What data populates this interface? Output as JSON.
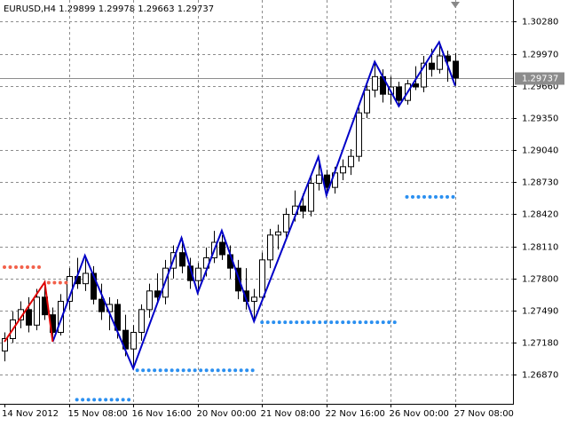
{
  "chart_data": {
    "type": "candlestick",
    "title": "EURUSD,H4  1.29899 1.29978 1.29663 1.29737",
    "categories": [
      "14 Nov 2012",
      null,
      null,
      null,
      null,
      null,
      null,
      null,
      "15 Nov 08:00",
      null,
      null,
      null,
      null,
      null,
      null,
      null,
      "16 Nov 16:00",
      null,
      null,
      null,
      null,
      null,
      null,
      null,
      "20 Nov 00:00",
      null,
      null,
      null,
      null,
      null,
      null,
      null,
      "21 Nov 08:00",
      null,
      null,
      null,
      null,
      null,
      null,
      null,
      "22 Nov 16:00",
      null,
      null,
      null,
      null,
      null,
      null,
      null,
      "26 Nov 00:00",
      null,
      null,
      null,
      null,
      null,
      null,
      null,
      "27 Nov 08:00"
    ],
    "open": [
      1.271,
      1.2722,
      1.274,
      1.275,
      1.2735,
      1.2762,
      1.2745,
      1.2728,
      1.2758,
      1.2782,
      1.2775,
      1.2785,
      1.276,
      1.2748,
      1.2755,
      1.273,
      1.2712,
      1.2728,
      1.275,
      1.2768,
      1.2762,
      1.279,
      1.2805,
      1.2792,
      1.2778,
      1.279,
      1.28,
      1.2815,
      1.2803,
      1.279,
      1.2768,
      1.2758,
      1.2762,
      1.2798,
      1.2822,
      1.2825,
      1.2842,
      1.285,
      1.2845,
      1.2872,
      1.288,
      1.2868,
      1.2882,
      1.2888,
      1.2898,
      1.294,
      1.2962,
      1.2975,
      1.2958,
      1.2965,
      1.2952,
      1.2968,
      1.2965,
      1.2988,
      1.2982,
      1.2995,
      1.29899
    ],
    "high": [
      1.2728,
      1.2748,
      1.2758,
      1.2762,
      1.277,
      1.2778,
      1.2752,
      1.2765,
      1.279,
      1.28,
      1.2802,
      1.2792,
      1.2775,
      1.2762,
      1.276,
      1.2745,
      1.2735,
      1.2755,
      1.2775,
      1.2785,
      1.2798,
      1.2812,
      1.2819,
      1.28,
      1.2795,
      1.281,
      1.2826,
      1.2822,
      1.2812,
      1.2798,
      1.279,
      1.277,
      1.2805,
      1.2828,
      1.2832,
      1.2848,
      1.2865,
      1.2862,
      1.288,
      1.2897,
      1.2885,
      1.2888,
      1.2895,
      1.2905,
      1.2945,
      1.297,
      1.2989,
      1.2982,
      1.2975,
      1.297,
      1.2972,
      1.2985,
      1.2995,
      1.3002,
      1.3008,
      1.3,
      1.29978
    ],
    "low": [
      1.27,
      1.2718,
      1.2732,
      1.2728,
      1.273,
      1.274,
      1.2719,
      1.2725,
      1.275,
      1.277,
      1.2768,
      1.2755,
      1.274,
      1.273,
      1.2722,
      1.2705,
      1.2693,
      1.272,
      1.2742,
      1.2758,
      1.2755,
      1.278,
      1.2785,
      1.277,
      1.2766,
      1.2782,
      1.2795,
      1.2798,
      1.278,
      1.276,
      1.275,
      1.2739,
      1.2758,
      1.279,
      1.2808,
      1.2818,
      1.2835,
      1.2838,
      1.284,
      1.2865,
      1.286,
      1.2862,
      1.2875,
      1.288,
      1.2893,
      1.2935,
      1.2955,
      1.295,
      1.2948,
      1.2946,
      1.2948,
      1.2962,
      1.296,
      1.2975,
      1.2978,
      1.297,
      1.29663
    ],
    "close": [
      1.2722,
      1.274,
      1.275,
      1.2735,
      1.2762,
      1.2745,
      1.2728,
      1.2758,
      1.2782,
      1.2775,
      1.2785,
      1.276,
      1.2748,
      1.2755,
      1.273,
      1.2712,
      1.2728,
      1.275,
      1.2768,
      1.2762,
      1.279,
      1.2805,
      1.2792,
      1.2778,
      1.279,
      1.28,
      1.2815,
      1.2803,
      1.279,
      1.2768,
      1.2758,
      1.2762,
      1.2798,
      1.2822,
      1.2825,
      1.2842,
      1.285,
      1.2845,
      1.2872,
      1.288,
      1.2868,
      1.2882,
      1.2888,
      1.2898,
      1.294,
      1.2962,
      1.2975,
      1.2958,
      1.2965,
      1.2952,
      1.2968,
      1.2965,
      1.2988,
      1.2982,
      1.2995,
      1.299,
      1.29737
    ],
    "zigzags": [
      {
        "color": "#0000c8",
        "x": [
          6,
          10,
          16,
          22,
          24,
          27,
          31,
          39,
          40,
          46,
          49,
          54,
          56
        ],
        "values": [
          1.27189,
          1.28022,
          1.26931,
          1.28193,
          1.27661,
          1.28262,
          1.27386,
          1.28975,
          1.28605,
          1.29894,
          1.29464,
          1.30083,
          1.29662
        ]
      },
      {
        "color": "#e00000",
        "x": [
          0,
          5,
          6
        ],
        "values": [
          1.27189,
          1.27764,
          1.27189
        ]
      }
    ],
    "levels": [
      {
        "color": "#f2604a",
        "value": 1.2791,
        "x": [
          0,
          5
        ]
      },
      {
        "color": "#f2604a",
        "value": 1.2776,
        "x": [
          5.5,
          8
        ]
      },
      {
        "color": "#2a8ff0",
        "value": 1.2663,
        "x": [
          9,
          16
        ]
      },
      {
        "color": "#2a8ff0",
        "value": 1.26914,
        "x": [
          16.5,
          31
        ]
      },
      {
        "color": "#2a8ff0",
        "value": 1.27378,
        "x": [
          32,
          49
        ]
      },
      {
        "color": "#2a8ff0",
        "value": 1.28588,
        "x": [
          50,
          56
        ]
      }
    ],
    "last_price": {
      "value": 1.29737,
      "label": "1.29737"
    },
    "ylim": [
      1.2659,
      1.3049
    ],
    "yticks": [
      {
        "value": 1.2687,
        "label": "1.26870"
      },
      {
        "value": 1.2718,
        "label": "1.27180"
      },
      {
        "value": 1.2749,
        "label": "1.27490"
      },
      {
        "value": 1.278,
        "label": "1.27800"
      },
      {
        "value": 1.2811,
        "label": "1.28110"
      },
      {
        "value": 1.2842,
        "label": "1.28420"
      },
      {
        "value": 1.2873,
        "label": "1.28730"
      },
      {
        "value": 1.2904,
        "label": "1.29040"
      },
      {
        "value": 1.2935,
        "label": "1.29350"
      },
      {
        "value": 1.2966,
        "label": "1.29660"
      },
      {
        "value": 1.2997,
        "label": "1.29970"
      },
      {
        "value": 1.3028,
        "label": "1.30280"
      }
    ],
    "grid": true
  }
}
